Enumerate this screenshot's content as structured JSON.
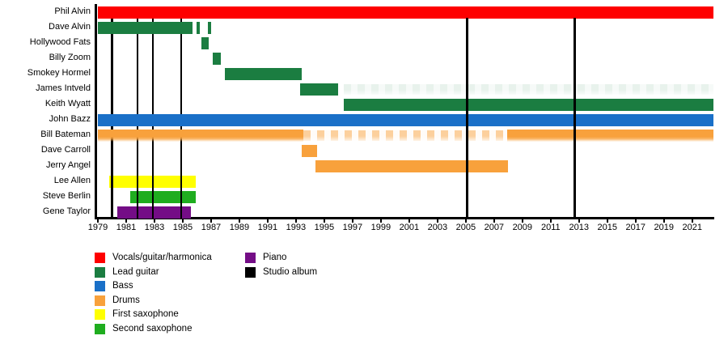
{
  "chart_data": {
    "type": "timeline-gantt",
    "description": "Band member tenure timeline with studio album markers",
    "axis": {
      "start": 1979,
      "end": 2022.5,
      "tick_years": [
        1979,
        1981,
        1983,
        1985,
        1987,
        1989,
        1991,
        1993,
        1995,
        1997,
        1999,
        2001,
        2003,
        2005,
        2007,
        2009,
        2011,
        2013,
        2015,
        2017,
        2019,
        2021
      ]
    },
    "colors": {
      "red": "#FE0000",
      "dkgreen": "#1B7D41",
      "blue": "#1A70C8",
      "orange": "#F8A13C",
      "yellow": "#FFFF00",
      "green2": "#1FAD1F",
      "purple": "#740D86",
      "black": "#000000"
    },
    "members": [
      {
        "name": "Phil Alvin",
        "color": "red",
        "segments": [
          [
            1979,
            2022.5
          ]
        ]
      },
      {
        "name": "Dave Alvin",
        "color": "dkgreen",
        "segments": [
          [
            1979,
            1985.7
          ],
          [
            1985.95,
            1986.2
          ],
          [
            1986.75,
            1987.0
          ]
        ]
      },
      {
        "name": "Hollywood Fats",
        "color": "dkgreen",
        "segments": [
          [
            1986.3,
            1986.85
          ]
        ]
      },
      {
        "name": "Billy Zoom",
        "color": "dkgreen",
        "segments": [
          [
            1987.1,
            1987.7
          ]
        ]
      },
      {
        "name": "Smokey Hormel",
        "color": "dkgreen",
        "segments": [
          [
            1988.0,
            1993.4
          ]
        ]
      },
      {
        "name": "James Intveld",
        "color": "dkgreen",
        "segments": [
          [
            1993.3,
            1996.0
          ]
        ],
        "faint_segments": [
          [
            1996.4,
            2022.5
          ]
        ],
        "faint_opacity": 0.1
      },
      {
        "name": "Keith Wyatt",
        "color": "dkgreen",
        "segments": [
          [
            1996.4,
            2022.5
          ]
        ]
      },
      {
        "name": "John Bazz",
        "color": "blue",
        "segments": [
          [
            1979,
            2022.5
          ]
        ]
      },
      {
        "name": "Bill Bateman",
        "color": "orange",
        "segments": [
          [
            1979,
            1993.5
          ],
          [
            2007.9,
            2022.5
          ]
        ],
        "faint_segments": [
          [
            1993.5,
            2007.9
          ]
        ],
        "faint_opacity": 0.5,
        "fade_bottom": true
      },
      {
        "name": "Dave Carroll",
        "color": "orange",
        "segments": [
          [
            1993.4,
            1994.5
          ]
        ]
      },
      {
        "name": "Jerry Angel",
        "color": "orange",
        "segments": [
          [
            1994.4,
            2008.0
          ]
        ]
      },
      {
        "name": "Lee Allen",
        "color": "yellow",
        "segments": [
          [
            1979.8,
            1985.9
          ]
        ],
        "layer": "back"
      },
      {
        "name": "Steve Berlin",
        "color": "green2",
        "segments": [
          [
            1981.3,
            1985.9
          ]
        ],
        "layer": "back"
      },
      {
        "name": "Gene Taylor",
        "color": "purple",
        "segments": [
          [
            1980.4,
            1985.6
          ]
        ],
        "layer": "back"
      }
    ],
    "albums": [
      {
        "year": 1980.0,
        "layer": "mid"
      },
      {
        "year": 1981.8,
        "layer": "mid"
      },
      {
        "year": 1982.9,
        "layer": "mid"
      },
      {
        "year": 1984.9,
        "layer": "mid"
      },
      {
        "year": 2005.1,
        "layer": "front"
      },
      {
        "year": 2012.7,
        "layer": "front"
      }
    ]
  },
  "legend": {
    "columns": [
      [
        {
          "label": "Vocals/guitar/harmonica",
          "color": "red"
        },
        {
          "label": "Lead guitar",
          "color": "dkgreen"
        },
        {
          "label": "Bass",
          "color": "blue"
        },
        {
          "label": "Drums",
          "color": "orange"
        },
        {
          "label": "First saxophone",
          "color": "yellow"
        },
        {
          "label": "Second saxophone",
          "color": "green2"
        }
      ],
      [
        {
          "label": "Piano",
          "color": "purple"
        },
        {
          "label": "Studio album",
          "color": "black"
        }
      ]
    ]
  }
}
